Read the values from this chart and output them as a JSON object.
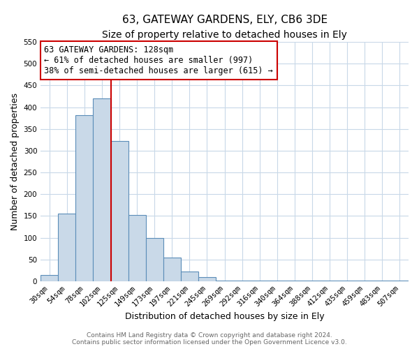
{
  "title": "63, GATEWAY GARDENS, ELY, CB6 3DE",
  "subtitle": "Size of property relative to detached houses in Ely",
  "xlabel": "Distribution of detached houses by size in Ely",
  "ylabel": "Number of detached properties",
  "bin_labels": [
    "30sqm",
    "54sqm",
    "78sqm",
    "102sqm",
    "125sqm",
    "149sqm",
    "173sqm",
    "197sqm",
    "221sqm",
    "245sqm",
    "269sqm",
    "292sqm",
    "316sqm",
    "340sqm",
    "364sqm",
    "388sqm",
    "412sqm",
    "435sqm",
    "459sqm",
    "483sqm",
    "507sqm"
  ],
  "bar_heights": [
    15,
    155,
    382,
    420,
    322,
    153,
    100,
    55,
    22,
    10,
    2,
    2,
    1,
    1,
    1,
    1,
    1,
    1,
    1,
    1,
    1
  ],
  "bar_color": "#c9d9e8",
  "bar_edge_color": "#5b8db8",
  "property_line_color": "#cc0000",
  "annotation_text": "63 GATEWAY GARDENS: 128sqm\n← 61% of detached houses are smaller (997)\n38% of semi-detached houses are larger (615) →",
  "annotation_box_color": "#ffffff",
  "annotation_box_edge_color": "#cc0000",
  "ylim": [
    0,
    550
  ],
  "yticks": [
    0,
    50,
    100,
    150,
    200,
    250,
    300,
    350,
    400,
    450,
    500,
    550
  ],
  "footer_line1": "Contains HM Land Registry data © Crown copyright and database right 2024.",
  "footer_line2": "Contains public sector information licensed under the Open Government Licence v3.0.",
  "bg_color": "#ffffff",
  "grid_color": "#c8d8e8",
  "title_fontsize": 11,
  "subtitle_fontsize": 10,
  "axis_label_fontsize": 9,
  "tick_label_fontsize": 7.5,
  "annotation_fontsize": 8.5,
  "footer_fontsize": 6.5
}
